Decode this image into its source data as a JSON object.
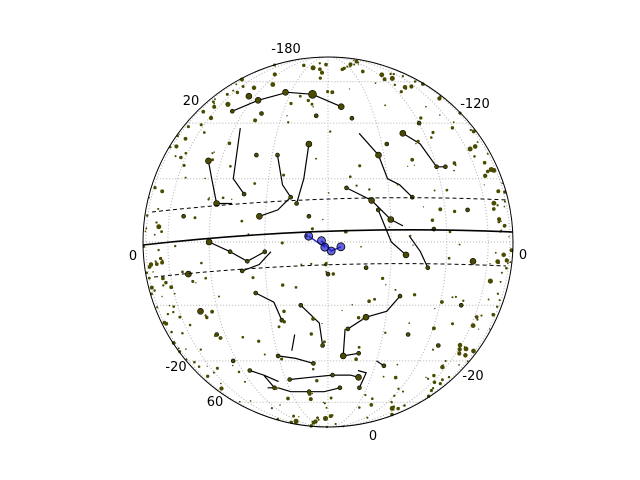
{
  "chart_data": {
    "type": "scatter",
    "title": "",
    "projection": "orthographic sky sphere",
    "grid": true,
    "legend": "none",
    "colors": {
      "stars": "#4a4a00",
      "star_edge": "#000000",
      "constellation_lines": "#000000",
      "highlight": "#2222cc",
      "grid": "#b0b0b0",
      "background": "#ffffff"
    },
    "edge_labels": [
      "-180",
      "20",
      "-120",
      "0",
      "0",
      "-20",
      "60",
      "-20",
      "0"
    ],
    "highlighted_constellation": {
      "name": "",
      "points": [
        [
          -6,
          1.8
        ],
        [
          -2,
          0.4
        ],
        [
          1,
          -2.8
        ],
        [
          4,
          -1.5
        ],
        [
          -1,
          -1.6
        ]
      ]
    },
    "constellations": [
      [
        [
          -47,
          45
        ],
        [
          -36,
          50
        ],
        [
          -22,
          54
        ],
        [
          -8,
          53
        ],
        [
          6,
          47
        ]
      ],
      [
        [
          -37,
          38
        ],
        [
          -33,
          20
        ],
        [
          -28,
          15
        ]
      ],
      [
        [
          12,
          36
        ],
        [
          18,
          28
        ],
        [
          20,
          20
        ],
        [
          24,
          18
        ],
        [
          28,
          14
        ]
      ],
      [
        [
          30,
          36
        ],
        [
          36,
          32
        ],
        [
          40,
          24
        ],
        [
          44,
          24
        ]
      ],
      [
        [
          -46,
          26
        ],
        [
          -42,
          20
        ],
        [
          -38,
          12
        ],
        [
          -32,
          12
        ]
      ],
      [
        [
          -18,
          28
        ],
        [
          -15,
          18
        ],
        [
          -12,
          14
        ],
        [
          -16,
          10
        ],
        [
          -22,
          8
        ]
      ],
      [
        [
          -10,
          12
        ],
        [
          -8,
          20
        ],
        [
          -7,
          32
        ]
      ],
      [
        [
          6,
          17
        ],
        [
          14,
          13
        ],
        [
          20,
          7
        ],
        [
          24,
          5
        ]
      ],
      [
        [
          16,
          10
        ],
        [
          20,
          0
        ],
        [
          25,
          -4
        ]
      ],
      [
        [
          26,
          2
        ],
        [
          30,
          -3
        ],
        [
          33,
          -8
        ]
      ],
      [
        [
          -40,
          0
        ],
        [
          -32,
          -3
        ],
        [
          -26,
          -6
        ],
        [
          -20,
          -3
        ]
      ],
      [
        [
          -28,
          -9
        ],
        [
          -22,
          -7
        ],
        [
          -18,
          -3
        ]
      ],
      [
        [
          -24,
          -16
        ],
        [
          -18,
          -19
        ],
        [
          -16,
          -25
        ]
      ],
      [
        [
          -9,
          -20
        ],
        [
          -3,
          -26
        ],
        [
          -2,
          -34
        ]
      ],
      [
        [
          -12,
          -30
        ],
        [
          -14,
          -36
        ]
      ],
      [
        [
          7,
          -28
        ],
        [
          13,
          -24
        ],
        [
          20,
          -22
        ],
        [
          24,
          -17
        ]
      ],
      [
        [
          6,
          -28
        ],
        [
          6,
          -38
        ],
        [
          12,
          -37
        ]
      ],
      [
        [
          -20,
          -38
        ],
        [
          -13,
          -39
        ],
        [
          -6,
          -41
        ]
      ],
      [
        [
          -36,
          -44
        ],
        [
          -30,
          -46
        ],
        [
          -28,
          -52
        ],
        [
          -32,
          -52
        ]
      ],
      [
        [
          -30,
          -46
        ],
        [
          -24,
          -49
        ]
      ],
      [
        [
          -18,
          -48
        ],
        [
          -8,
          -47
        ],
        [
          2,
          -46
        ],
        [
          10,
          -46
        ],
        [
          14,
          -47
        ]
      ],
      [
        [
          -26,
          -52
        ],
        [
          -20,
          -54
        ],
        [
          -10,
          -54
        ],
        [
          -2,
          -54
        ],
        [
          6,
          -52
        ]
      ],
      [
        [
          13,
          -44
        ],
        [
          17,
          -45
        ],
        [
          16,
          -52
        ]
      ],
      [
        [
          20,
          -40
        ],
        [
          24,
          -42
        ]
      ]
    ],
    "stars": [
      [
        -44,
        52,
        3
      ],
      [
        -36,
        50,
        3
      ],
      [
        -23,
        54,
        3
      ],
      [
        -8,
        53,
        4
      ],
      [
        6,
        47,
        3
      ],
      [
        -18,
        28,
        2
      ],
      [
        -12,
        14,
        2
      ],
      [
        -22,
        8,
        3
      ],
      [
        -10,
        12,
        2
      ],
      [
        6,
        17,
        2
      ],
      [
        14,
        13,
        3
      ],
      [
        20,
        7,
        3
      ],
      [
        16,
        10,
        2
      ],
      [
        25,
        -4,
        3
      ],
      [
        33,
        -8,
        2
      ],
      [
        -40,
        0,
        3
      ],
      [
        -32,
        -3,
        2
      ],
      [
        -26,
        -6,
        2
      ],
      [
        -20,
        -3,
        2
      ],
      [
        -28,
        -9,
        2
      ],
      [
        -24,
        -16,
        2
      ],
      [
        -16,
        -25,
        2
      ],
      [
        -9,
        -20,
        2
      ],
      [
        -2,
        -34,
        2
      ],
      [
        7,
        -28,
        2
      ],
      [
        13,
        -24,
        3
      ],
      [
        24,
        -17,
        2
      ],
      [
        6,
        -38,
        3
      ],
      [
        12,
        -37,
        2
      ],
      [
        -20,
        -38,
        2
      ],
      [
        -6,
        -41,
        2
      ],
      [
        -36,
        -44,
        2
      ],
      [
        -28,
        -52,
        2
      ],
      [
        -18,
        -48,
        2
      ],
      [
        2,
        -46,
        2
      ],
      [
        14,
        -47,
        3
      ],
      [
        -10,
        -54,
        2
      ],
      [
        6,
        -52,
        2
      ],
      [
        16,
        -52,
        2
      ],
      [
        24,
        -42,
        2
      ],
      [
        -47,
        45,
        2
      ],
      [
        -28,
        15,
        2
      ],
      [
        30,
        36,
        3
      ],
      [
        40,
        24,
        2
      ],
      [
        44,
        24,
        2
      ],
      [
        -46,
        26,
        3
      ],
      [
        -38,
        12,
        3
      ],
      [
        -7,
        32,
        3
      ],
      [
        18,
        28,
        3
      ],
      [
        28,
        14,
        2
      ],
      [
        -52,
        8,
        2
      ],
      [
        -50,
        -10,
        3
      ],
      [
        -48,
        -22,
        3
      ],
      [
        -44,
        -30,
        2
      ],
      [
        50,
        10,
        2
      ],
      [
        52,
        -6,
        3
      ],
      [
        50,
        -20,
        2
      ],
      [
        46,
        -34,
        2
      ],
      [
        40,
        40,
        2
      ],
      [
        -30,
        44,
        2
      ],
      [
        -5,
        43,
        2
      ],
      [
        10,
        42,
        2
      ],
      [
        22,
        32,
        2
      ],
      [
        -26,
        28,
        2
      ],
      [
        35,
        4,
        2
      ],
      [
        -42,
        -40,
        2
      ],
      [
        30,
        -30,
        2
      ],
      [
        0,
        -10,
        2
      ],
      [
        -6,
        8,
        2
      ],
      [
        12,
        -8,
        2
      ]
    ]
  }
}
